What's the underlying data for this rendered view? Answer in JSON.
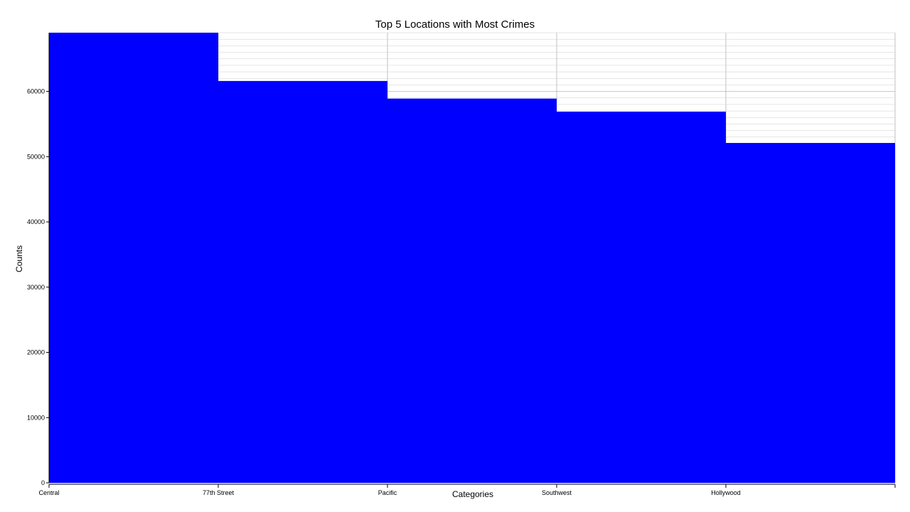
{
  "chart_data": {
    "type": "bar",
    "title": "Top 5 Locations with Most Crimes",
    "xlabel": "Categories",
    "ylabel": "Counts",
    "categories": [
      "Central",
      "77th Street",
      "Pacific",
      "Southwest",
      "Hollywood"
    ],
    "values": [
      69000,
      61600,
      58900,
      56900,
      52100
    ],
    "ylim": [
      0,
      69000
    ],
    "yticks": [
      "0",
      "10000",
      "20000",
      "30000",
      "40000",
      "50000",
      "60000"
    ],
    "grid": true,
    "bar_color": "#0000ff",
    "grid_color": "#cccccc"
  }
}
